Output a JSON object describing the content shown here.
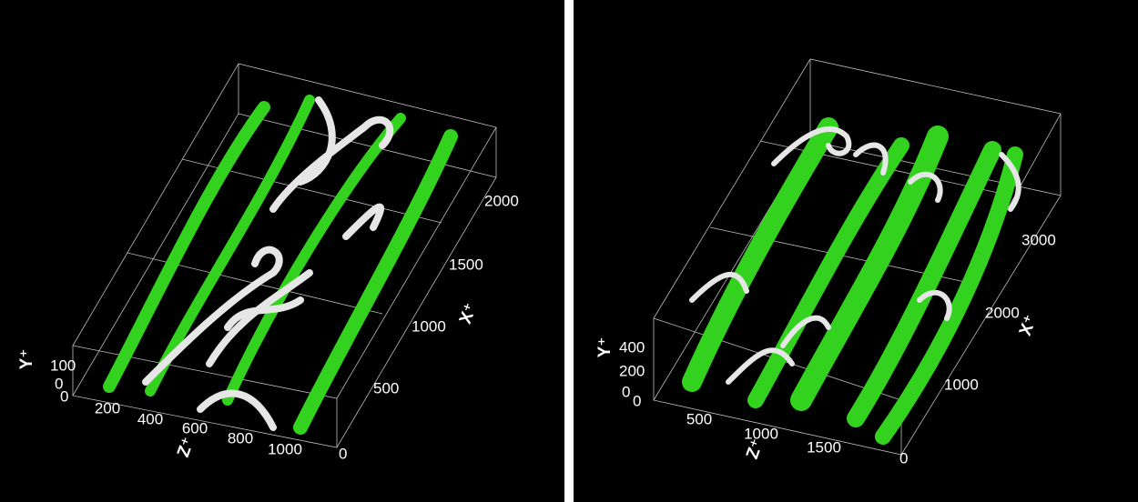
{
  "panels": [
    {
      "y_axis": {
        "label": "Y⁺",
        "ticks": [
          100,
          0
        ]
      },
      "corner_tick": 0,
      "z_axis": {
        "label": "Z⁺",
        "ticks": [
          200,
          400,
          600,
          800,
          1000
        ]
      },
      "x_axis": {
        "label": "X⁺",
        "ticks": [
          0,
          500,
          1000,
          1500,
          2000
        ]
      }
    },
    {
      "y_axis": {
        "label": "Y⁺",
        "ticks": [
          400,
          200,
          0
        ]
      },
      "corner_tick": 0,
      "z_axis": {
        "label": "Z⁺",
        "ticks": [
          500,
          1000,
          1500
        ]
      },
      "x_axis": {
        "label": "X⁺",
        "ticks": [
          0,
          1000,
          2000,
          3000
        ]
      }
    }
  ]
}
